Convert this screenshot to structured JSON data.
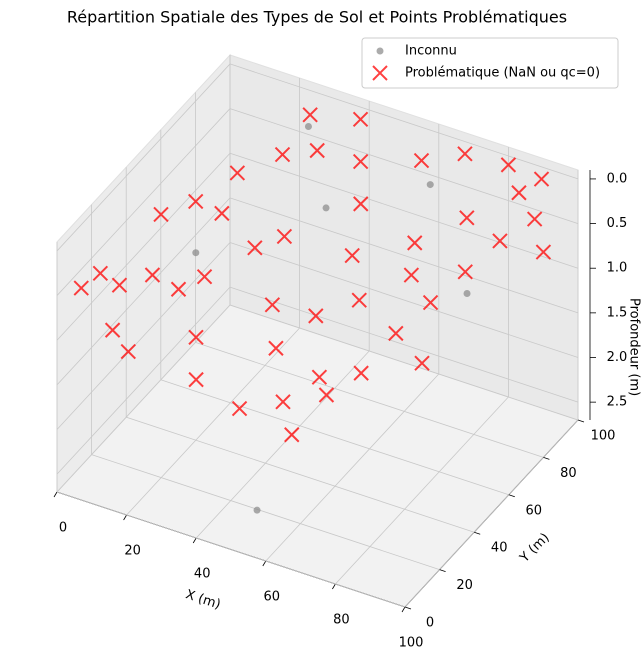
{
  "chart_data": {
    "type": "scatter3d",
    "title": "Répartition Spatiale des Types de Sol et Points Problématiques",
    "xlabel": "X (m)",
    "ylabel": "Y (m)",
    "zlabel": "Profondeur (m)",
    "xlim": [
      0,
      100
    ],
    "ylim": [
      0,
      100
    ],
    "zlim": [
      -0.1,
      2.7
    ],
    "xticks": [
      0,
      20,
      40,
      60,
      80,
      100
    ],
    "yticks": [
      0,
      20,
      40,
      60,
      80,
      100
    ],
    "zticks": [
      {
        "value": 0,
        "label": "0.0"
      },
      0.5,
      {
        "value": 1,
        "label": "1.0"
      },
      1.5,
      {
        "value": 2,
        "label": "2.0"
      },
      2.5
    ],
    "grid": true,
    "legend": "upper right",
    "series": [
      {
        "name": "Inconnu",
        "color": "#888888",
        "marker": "o",
        "x": [
          30,
          88,
          55,
          20,
          65,
          45
        ],
        "y": [
          85,
          60,
          5,
          40,
          85,
          65
        ],
        "z": [
          0.0,
          0.6,
          2.3,
          0.6,
          0.2,
          0.3
        ]
      },
      {
        "name": "Problématique (NaN ou qc=0)",
        "color": "#ff0000",
        "marker": "x",
        "x": [
          2,
          5,
          8,
          12,
          15,
          18,
          20,
          10,
          25,
          22,
          30,
          35,
          28,
          40,
          45,
          50,
          38,
          42,
          48,
          55,
          60,
          65,
          70,
          75,
          80,
          85,
          90,
          95,
          60,
          70,
          80,
          55,
          62,
          68,
          30,
          35,
          45,
          52,
          58,
          72,
          88,
          92,
          15,
          25,
          32,
          100,
          78,
          85
        ],
        "y": [
          10,
          15,
          20,
          8,
          25,
          5,
          30,
          40,
          45,
          60,
          70,
          80,
          90,
          95,
          85,
          75,
          55,
          40,
          30,
          20,
          15,
          25,
          35,
          45,
          55,
          65,
          75,
          85,
          90,
          95,
          100,
          60,
          50,
          70,
          20,
          10,
          15,
          45,
          35,
          60,
          90,
          95,
          50,
          35,
          50,
          80,
          80,
          40
        ],
        "z": [
          0.6,
          0.5,
          0.7,
          0.9,
          0.6,
          1.0,
          0.8,
          0.3,
          0.2,
          0.1,
          0.0,
          0.1,
          0.0,
          0.0,
          0.2,
          0.4,
          0.5,
          0.9,
          1.1,
          1.4,
          1.6,
          1.3,
          1.2,
          0.9,
          0.7,
          0.5,
          0.3,
          0.2,
          0.1,
          0.0,
          0.1,
          0.6,
          0.8,
          0.5,
          1.0,
          1.2,
          1.5,
          1.0,
          1.4,
          0.6,
          0.1,
          0.0,
          0.3,
          0.7,
          0.6,
          0.4,
          0.3,
          1.0
        ]
      }
    ]
  }
}
